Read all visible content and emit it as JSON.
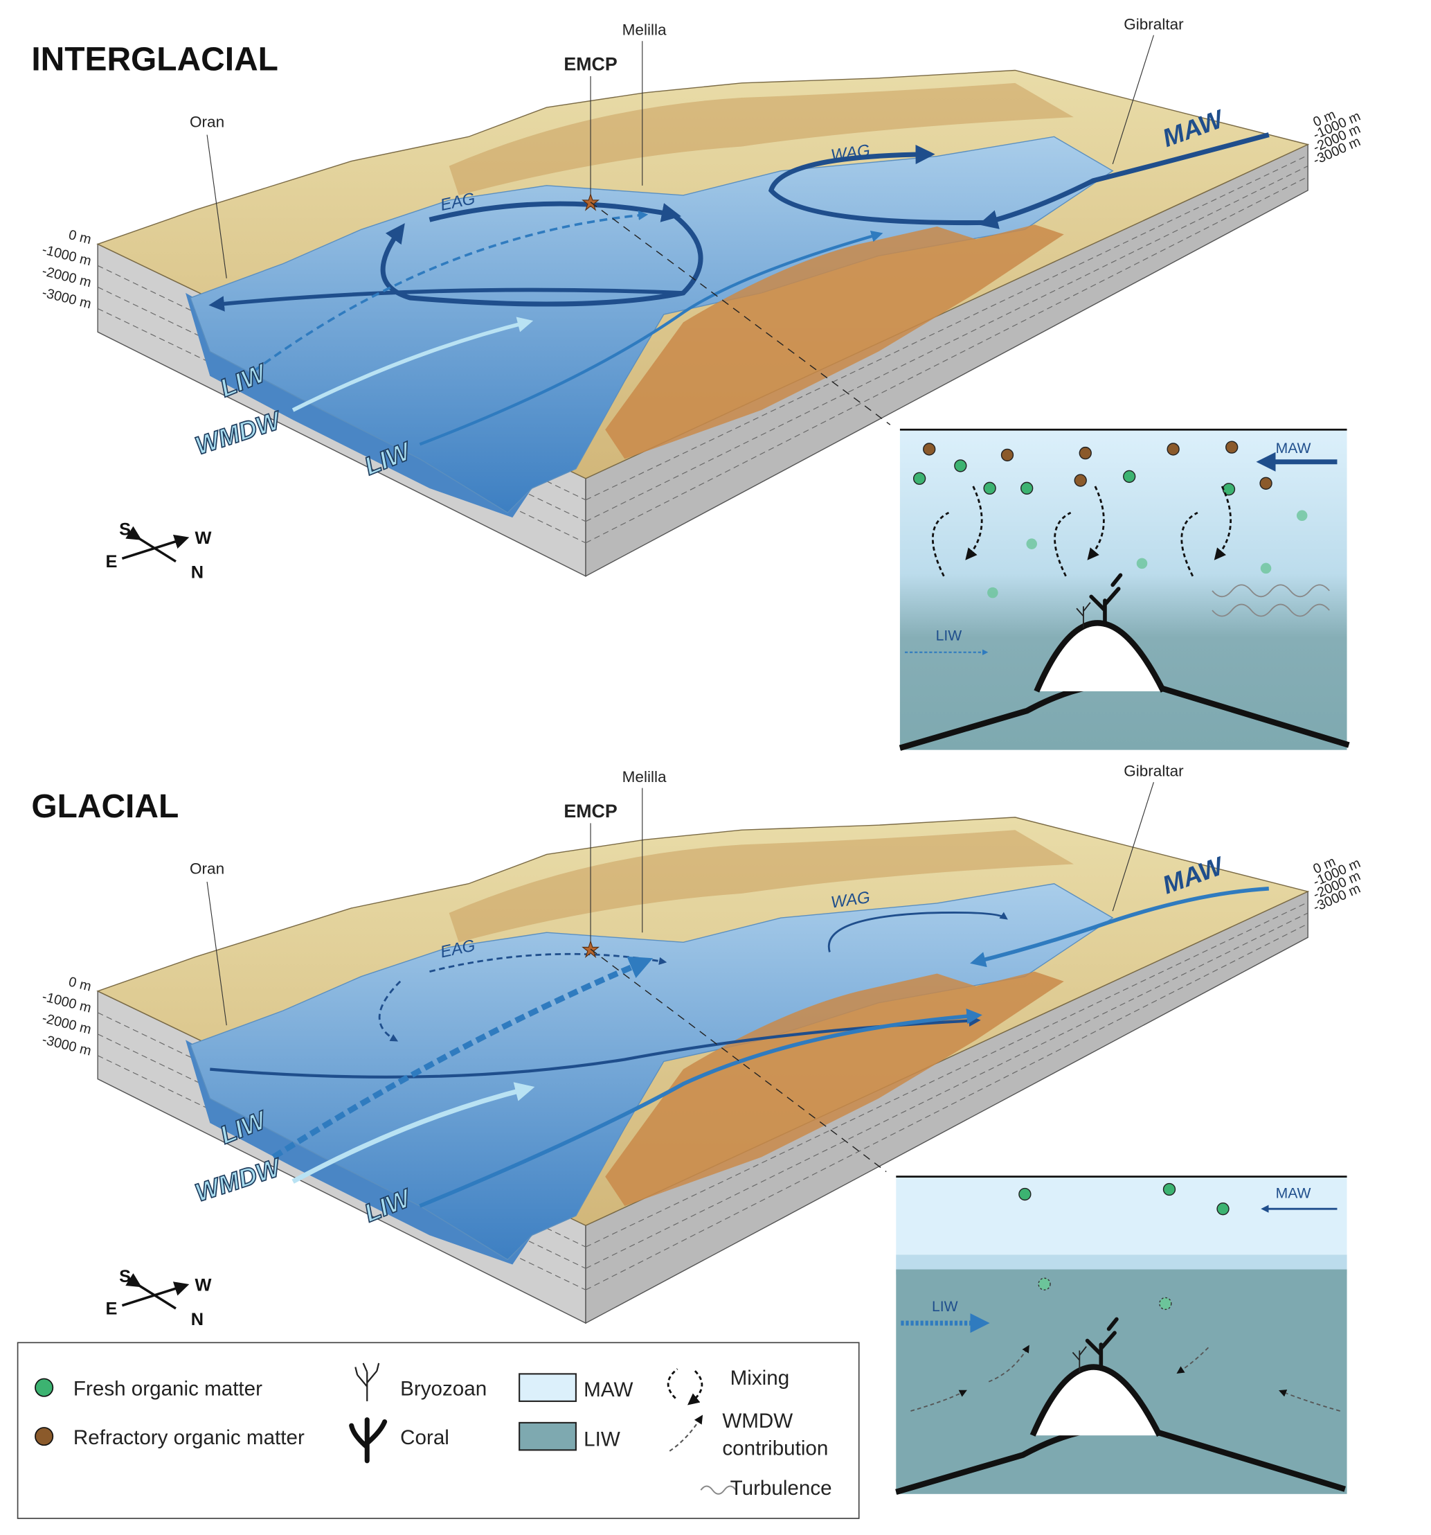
{
  "panels": [
    {
      "title": "INTERGLACIAL",
      "places": {
        "oran": "Oran",
        "melilla": "Melilla",
        "emcp": "EMCP",
        "gibraltar": "Gibraltar"
      },
      "gyres": {
        "eag": "EAG",
        "wag": "WAG"
      },
      "water_masses": {
        "maw": "MAW",
        "liw_upper": "LIW",
        "wmdw": "WMDW",
        "liw_lower": "LIW"
      },
      "depths": [
        "0 m",
        "-1000 m",
        "-2000 m",
        "-3000 m"
      ],
      "compass": {
        "s": "S",
        "w": "W",
        "e": "E",
        "n": "N"
      },
      "inset": {
        "maw": "MAW",
        "liw": "LIW"
      }
    },
    {
      "title": "GLACIAL",
      "places": {
        "oran": "Oran",
        "melilla": "Melilla",
        "emcp": "EMCP",
        "gibraltar": "Gibraltar"
      },
      "gyres": {
        "eag": "EAG",
        "wag": "WAG"
      },
      "water_masses": {
        "maw": "MAW",
        "liw_upper": "LIW",
        "wmdw": "WMDW",
        "liw_lower": "LIW"
      },
      "depths": [
        "0 m",
        "-1000 m",
        "-2000 m",
        "-3000 m"
      ],
      "compass": {
        "s": "S",
        "w": "W",
        "e": "E",
        "n": "N"
      },
      "inset": {
        "maw": "MAW",
        "liw": "LIW"
      }
    }
  ],
  "legend": {
    "fresh": "Fresh organic matter",
    "refractory": "Refractory organic matter",
    "bryozoan": "Bryozoan",
    "coral": "Coral",
    "maw": "MAW",
    "liw": "LIW",
    "mixing": "Mixing",
    "wmdw": "WMDW",
    "contribution": "contribution",
    "turbulence": "Turbulence"
  }
}
